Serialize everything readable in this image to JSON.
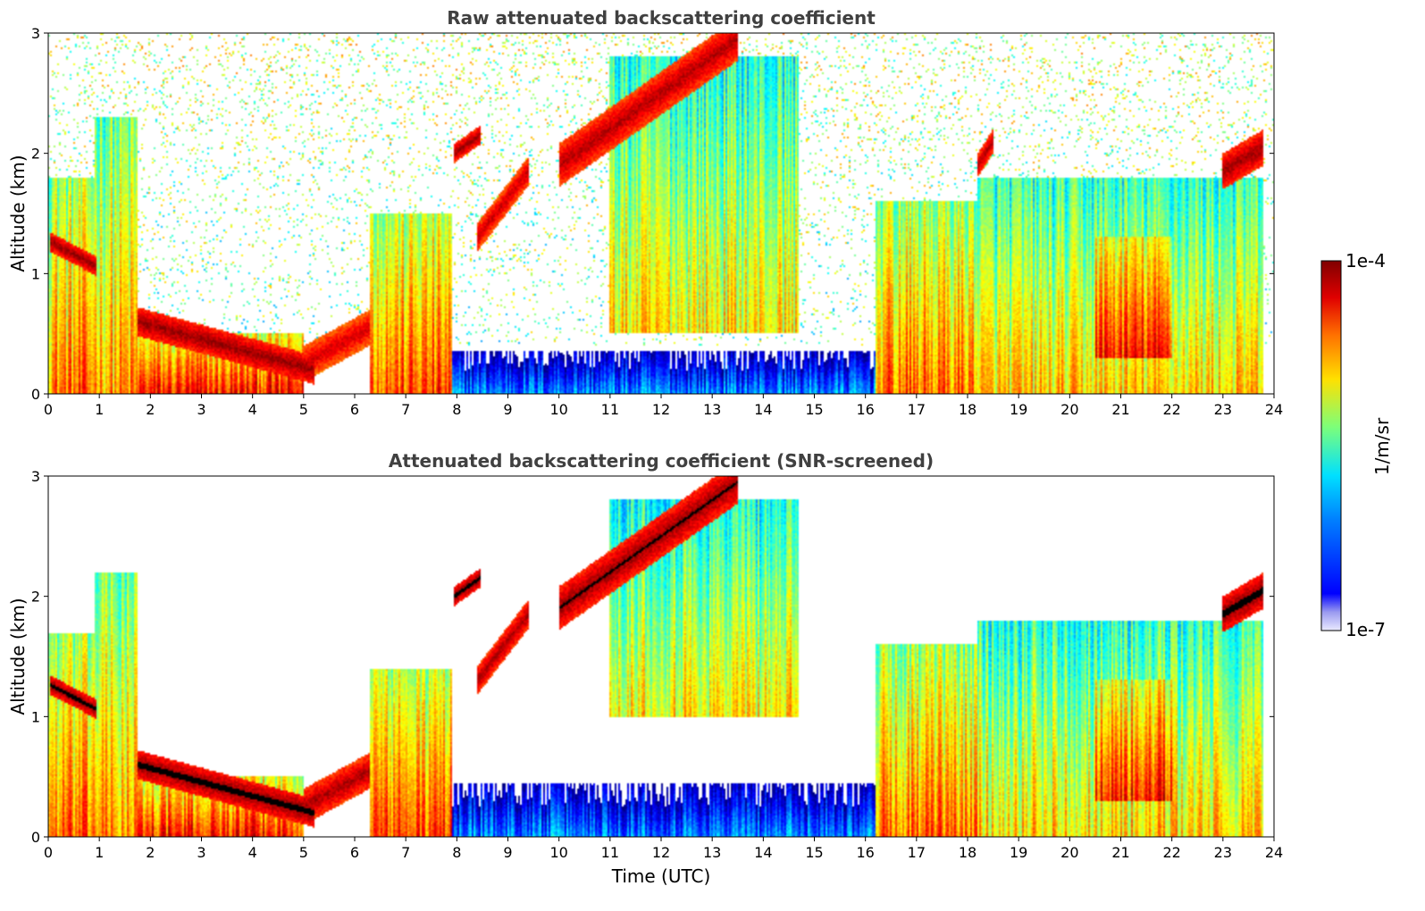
{
  "chart_data": [
    {
      "type": "heatmap",
      "title": "Raw attenuated backscattering coefficient",
      "xlabel": "",
      "ylabel": "Altitude (km)",
      "xlim": [
        0,
        24
      ],
      "ylim": [
        0,
        3
      ],
      "xticks": [
        "0",
        "1",
        "2",
        "3",
        "4",
        "5",
        "6",
        "7",
        "8",
        "9",
        "10",
        "11",
        "12",
        "13",
        "14",
        "15",
        "16",
        "17",
        "18",
        "19",
        "20",
        "21",
        "22",
        "23",
        "24"
      ],
      "yticks": [
        "0",
        "1",
        "2",
        "3"
      ],
      "screened": false,
      "features": [
        {
          "kind": "layer",
          "t0": 0.05,
          "t1": 0.95,
          "z0": 1.26,
          "z1": 1.06,
          "thick": 0.08,
          "level": 0.98
        },
        {
          "kind": "layer",
          "t0": 1.75,
          "t1": 5.2,
          "z0": 0.6,
          "z1": 0.2,
          "thick": 0.12,
          "level": 0.98
        },
        {
          "kind": "layer",
          "t0": 5.0,
          "t1": 6.3,
          "z0": 0.25,
          "z1": 0.55,
          "thick": 0.15,
          "level": 0.92
        },
        {
          "kind": "layer",
          "t0": 7.95,
          "t1": 8.45,
          "z0": 2.0,
          "z1": 2.15,
          "thick": 0.08,
          "level": 0.97
        },
        {
          "kind": "layer",
          "t0": 8.4,
          "t1": 9.4,
          "z0": 1.3,
          "z1": 1.85,
          "thick": 0.12,
          "level": 0.93
        },
        {
          "kind": "layer",
          "t0": 10.0,
          "t1": 13.5,
          "z0": 1.9,
          "z1": 2.95,
          "thick": 0.18,
          "level": 0.95
        },
        {
          "kind": "layer",
          "t0": 18.2,
          "t1": 18.5,
          "z0": 1.9,
          "z1": 2.1,
          "thick": 0.1,
          "level": 0.95
        },
        {
          "kind": "layer",
          "t0": 23.0,
          "t1": 23.8,
          "z0": 1.85,
          "z1": 2.05,
          "thick": 0.15,
          "level": 0.97
        },
        {
          "kind": "column",
          "t0": 0.0,
          "t1": 1.0,
          "z0": 0.0,
          "z1": 1.8,
          "level": 0.72
        },
        {
          "kind": "column",
          "t0": 0.9,
          "t1": 1.75,
          "z0": 0.0,
          "z1": 2.3,
          "level": 0.68
        },
        {
          "kind": "column",
          "t0": 1.75,
          "t1": 5.0,
          "z0": 0.0,
          "z1": 0.5,
          "level": 0.8
        },
        {
          "kind": "column",
          "t0": 6.3,
          "t1": 7.9,
          "z0": 0.0,
          "z1": 1.5,
          "level": 0.75
        },
        {
          "kind": "column",
          "t0": 16.2,
          "t1": 18.2,
          "z0": 0.0,
          "z1": 1.6,
          "level": 0.72
        },
        {
          "kind": "column",
          "t0": 18.2,
          "t1": 23.8,
          "z0": 0.0,
          "z1": 1.8,
          "level": 0.62
        },
        {
          "kind": "column",
          "t0": 20.5,
          "t1": 22.0,
          "z0": 0.3,
          "z1": 1.3,
          "level": 0.8
        },
        {
          "kind": "column",
          "t0": 11.0,
          "t1": 14.7,
          "z0": 0.5,
          "z1": 2.8,
          "level": 0.6
        },
        {
          "kind": "column",
          "t0": 7.9,
          "t1": 16.2,
          "z0": 0.0,
          "z1": 0.35,
          "level": 0.22
        }
      ]
    },
    {
      "type": "heatmap",
      "title": "Attenuated backscattering coefficient (SNR-screened)",
      "xlabel": "Time (UTC)",
      "ylabel": "Altitude (km)",
      "xlim": [
        0,
        24
      ],
      "ylim": [
        0,
        3
      ],
      "xticks": [
        "0",
        "1",
        "2",
        "3",
        "4",
        "5",
        "6",
        "7",
        "8",
        "9",
        "10",
        "11",
        "12",
        "13",
        "14",
        "15",
        "16",
        "17",
        "18",
        "19",
        "20",
        "21",
        "22",
        "23",
        "24"
      ],
      "yticks": [
        "0",
        "1",
        "2",
        "3"
      ],
      "screened": true,
      "features": [
        {
          "kind": "layer",
          "t0": 0.05,
          "t1": 0.95,
          "z0": 1.26,
          "z1": 1.06,
          "thick": 0.08,
          "level": 1.0
        },
        {
          "kind": "layer",
          "t0": 1.75,
          "t1": 5.2,
          "z0": 0.6,
          "z1": 0.2,
          "thick": 0.12,
          "level": 1.0
        },
        {
          "kind": "layer",
          "t0": 5.0,
          "t1": 6.3,
          "z0": 0.25,
          "z1": 0.55,
          "thick": 0.15,
          "level": 0.96
        },
        {
          "kind": "layer",
          "t0": 7.95,
          "t1": 8.45,
          "z0": 2.0,
          "z1": 2.15,
          "thick": 0.08,
          "level": 1.0
        },
        {
          "kind": "layer",
          "t0": 8.4,
          "t1": 9.4,
          "z0": 1.3,
          "z1": 1.85,
          "thick": 0.12,
          "level": 0.96
        },
        {
          "kind": "layer",
          "t0": 10.0,
          "t1": 13.5,
          "z0": 1.9,
          "z1": 2.95,
          "thick": 0.18,
          "level": 0.98
        },
        {
          "kind": "layer",
          "t0": 23.0,
          "t1": 23.8,
          "z0": 1.85,
          "z1": 2.05,
          "thick": 0.15,
          "level": 1.0
        },
        {
          "kind": "column",
          "t0": 0.0,
          "t1": 1.0,
          "z0": 0.0,
          "z1": 1.7,
          "level": 0.72
        },
        {
          "kind": "column",
          "t0": 0.9,
          "t1": 1.75,
          "z0": 0.0,
          "z1": 2.2,
          "level": 0.68
        },
        {
          "kind": "column",
          "t0": 1.75,
          "t1": 5.0,
          "z0": 0.0,
          "z1": 0.5,
          "level": 0.8
        },
        {
          "kind": "column",
          "t0": 6.3,
          "t1": 7.9,
          "z0": 0.0,
          "z1": 1.4,
          "level": 0.75
        },
        {
          "kind": "column",
          "t0": 16.2,
          "t1": 18.2,
          "z0": 0.0,
          "z1": 1.6,
          "level": 0.72
        },
        {
          "kind": "column",
          "t0": 18.2,
          "t1": 23.8,
          "z0": 0.0,
          "z1": 1.8,
          "level": 0.62
        },
        {
          "kind": "column",
          "t0": 20.5,
          "t1": 22.0,
          "z0": 0.3,
          "z1": 1.3,
          "level": 0.8
        },
        {
          "kind": "column",
          "t0": 11.0,
          "t1": 14.7,
          "z0": 1.0,
          "z1": 2.8,
          "level": 0.6
        },
        {
          "kind": "column",
          "t0": 7.9,
          "t1": 16.2,
          "z0": 0.0,
          "z1": 0.45,
          "level": 0.22
        }
      ]
    }
  ],
  "colorbar": {
    "label": "1/m/sr",
    "max_label": "1e-4",
    "min_label": "1e-7",
    "colormap": "jet",
    "scale": "log",
    "range": [
      1e-07,
      0.0001
    ]
  }
}
